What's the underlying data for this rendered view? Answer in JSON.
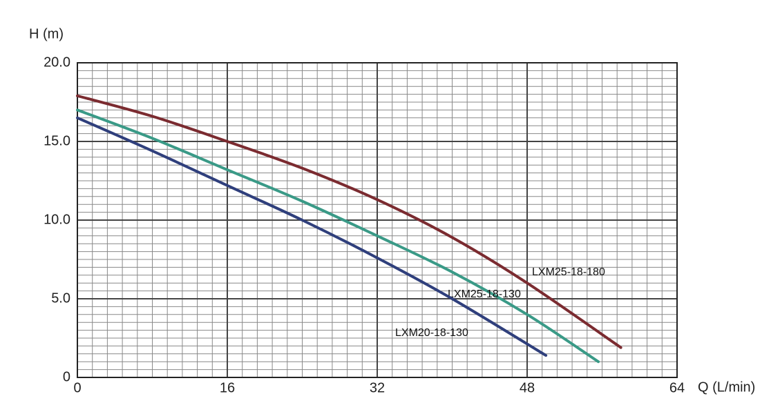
{
  "chart_data": {
    "type": "line",
    "y_label": "H (m)",
    "x_label": "Q (L/min)",
    "xlim": [
      0,
      64
    ],
    "xticks": [
      0,
      16,
      32,
      48,
      64
    ],
    "ylim": [
      0,
      20
    ],
    "yticks": [
      0,
      {
        "value": 5,
        "label": "5.0"
      },
      {
        "value": 10,
        "label": "10.0"
      },
      {
        "value": 15,
        "label": "15.0"
      },
      {
        "value": 20,
        "label": "20.0"
      }
    ],
    "grid": true,
    "minor_grid_divisions": 10,
    "series": [
      {
        "name": "LXM25-18-180",
        "color": "#7b2b30",
        "x": [
          0,
          8,
          16,
          24,
          32,
          40,
          48,
          58
        ],
        "values": [
          17.9,
          16.6,
          15.0,
          13.3,
          11.3,
          8.9,
          6.0,
          1.9
        ]
      },
      {
        "name": "LXM25-18-130",
        "color": "#3a9a87",
        "x": [
          0,
          8,
          16,
          24,
          32,
          40,
          48,
          55.6
        ],
        "values": [
          17.0,
          15.2,
          13.2,
          11.2,
          9.0,
          6.7,
          4.0,
          1.0
        ]
      },
      {
        "name": "LXM20-18-130",
        "color": "#2f3f7c",
        "x": [
          0,
          8,
          16,
          24,
          32,
          40,
          50
        ],
        "values": [
          16.5,
          14.4,
          12.2,
          10.0,
          7.6,
          5.0,
          1.4
        ]
      }
    ]
  }
}
